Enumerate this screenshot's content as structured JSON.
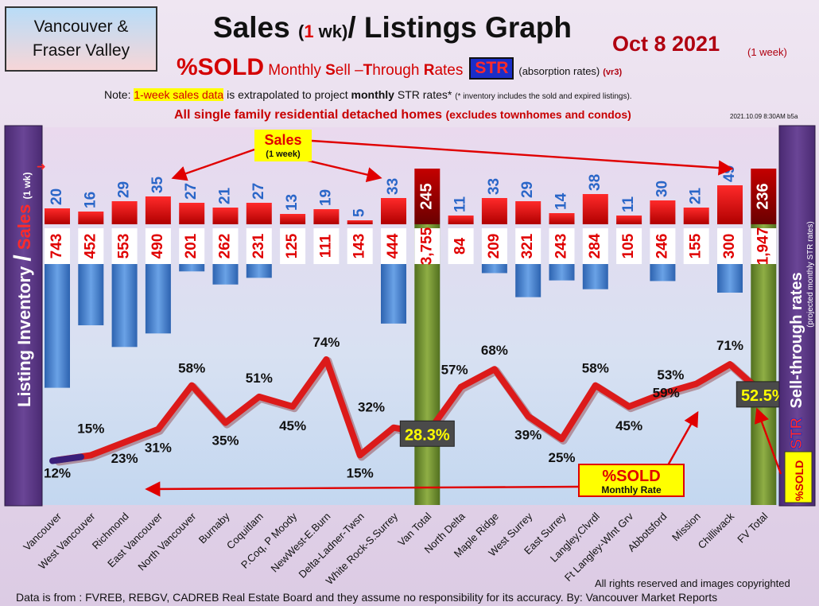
{
  "region": [
    "Vancouver &",
    "Fraser Valley"
  ],
  "title": {
    "pre": "Sales ",
    "paren_open": "(",
    "num": "1",
    "paren_rest": " wk)",
    "post": "/ Listings Graph"
  },
  "date": "Oct 8  2021",
  "date_sub": "(1 week)",
  "subtitle": {
    "pct": "%SOLD",
    "m": "Monthly ",
    "s": "S",
    "ell": "ell –",
    "t": "T",
    "hr": "hrough ",
    "r": "R",
    "ates": "ates",
    "str": "STR",
    "paren": "(absorption rates)",
    "vr": "(vr3)"
  },
  "note": {
    "pre": "Note: ",
    "hl": "1-week sales data",
    "mid": " is extrapolated to project ",
    "bold": "monthly",
    "post": " STR rates* ",
    "tiny": "(* inventory includes the sold and expired listings)."
  },
  "scope": {
    "main": "All single family residential detached homes ",
    "rest": "(excludes townhomes and condos)"
  },
  "stamp": "2021.10.09 8:30AM b5a",
  "left_axis": {
    "inventory": "Listing Inventory",
    "slash": "/",
    "sales": "Sales",
    "wk": "(1 wk)"
  },
  "right_axis": {
    "sell": "Sell-through rates",
    "str": "STR",
    "proj": "(projected monthly STR rates)",
    "pct": "%SOLD"
  },
  "callouts": {
    "sales": "Sales",
    "sales_sub": "(1 week)",
    "sold": "%SOLD",
    "sold_sub": "Monthly Rate"
  },
  "colors": {
    "sales": "#e80000",
    "inventory": "#3f7fcf",
    "line": "#dc1a1a",
    "total": "#6f8f2c"
  },
  "footer": "Data is from : FVREB, REBGV, CADREB Real Estate Board and they assume no responsibility for its accuracy. By: Vancouver Market Reports",
  "rights": "All rights reserved and  images copyrighted",
  "chart_data": {
    "type": "bar",
    "categories": [
      "Vancouver",
      "West Vancouver",
      "Richmond",
      "East Vancouver",
      "North Vancouver",
      "Burnaby",
      "Coquitlam",
      "P.Coq, P Moody",
      "NewWest-E.Burn",
      "Delta-Ladner-Twsn",
      "White Rock-S.Surrey",
      "Van Total",
      "North Delta",
      "Maple Ridge",
      "West Surrey",
      "East Surrey",
      "Langley,Clvrdl",
      "Ft Langley-Wlnt Grv",
      "Abbotsford",
      "Mission",
      "Chilliwack",
      "FV Total"
    ],
    "sales_labels": [
      "20",
      "16",
      "29",
      "35",
      "27",
      "21",
      "27",
      "13",
      "19",
      "5",
      "33",
      "245",
      "11",
      "33",
      "29",
      "14",
      "38",
      "11",
      "30",
      "21",
      "49",
      "236"
    ],
    "sales": [
      20,
      16,
      29,
      35,
      27,
      21,
      27,
      13,
      19,
      5,
      33,
      245,
      11,
      33,
      29,
      14,
      38,
      11,
      30,
      21,
      49,
      236
    ],
    "inventory_labels": [
      "743",
      "452",
      "553",
      "490",
      "201",
      "262",
      "231",
      "125",
      "111",
      "143",
      "444",
      "3,755",
      "84",
      "209",
      "321",
      "243",
      "284",
      "105",
      "246",
      "155",
      "300",
      "1,947"
    ],
    "inventory": [
      743,
      452,
      553,
      490,
      201,
      262,
      231,
      125,
      111,
      143,
      444,
      3755,
      84,
      209,
      321,
      243,
      284,
      105,
      246,
      155,
      300,
      1947
    ],
    "sold_pct_labels": [
      "12%",
      "15%",
      "23%",
      "31%",
      "58%",
      "35%",
      "51%",
      "45%",
      "74%",
      "15%",
      "32%",
      "28.3%",
      "57%",
      "68%",
      "39%",
      "25%",
      "58%",
      "45%",
      "53%",
      "59%",
      "71%",
      "52.5%"
    ],
    "sold_pct": [
      12,
      15,
      23,
      31,
      58,
      35,
      51,
      45,
      74,
      15,
      32,
      28.3,
      57,
      68,
      39,
      25,
      58,
      45,
      53,
      59,
      71,
      52.5
    ],
    "total_flags": [
      false,
      false,
      false,
      false,
      false,
      false,
      false,
      false,
      false,
      false,
      false,
      true,
      false,
      false,
      false,
      false,
      false,
      false,
      false,
      false,
      false,
      true
    ]
  }
}
